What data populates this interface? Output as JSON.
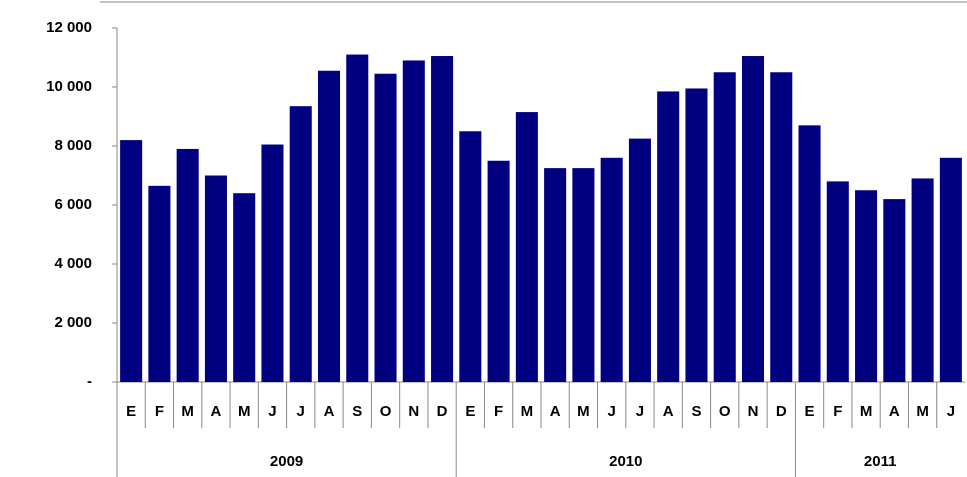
{
  "chart_data": {
    "type": "bar",
    "color": "#000080",
    "ylim": [
      0,
      12000
    ],
    "yticks": [
      {
        "value": 0,
        "label": "-"
      },
      {
        "value": 2000,
        "label": "2 000"
      },
      {
        "value": 4000,
        "label": "4 000"
      },
      {
        "value": 6000,
        "label": "6 000"
      },
      {
        "value": 8000,
        "label": "8 000"
      },
      {
        "value": 10000,
        "label": "10 000"
      },
      {
        "value": 12000,
        "label": "12 000"
      }
    ],
    "grid": false,
    "groups": [
      {
        "label": "2009",
        "categories": [
          "E",
          "F",
          "M",
          "A",
          "M",
          "J",
          "J",
          "A",
          "S",
          "O",
          "N",
          "D"
        ],
        "values": [
          8200,
          6650,
          7900,
          7000,
          6400,
          8050,
          9350,
          10550,
          11100,
          10450,
          10900,
          11050
        ]
      },
      {
        "label": "2010",
        "categories": [
          "E",
          "F",
          "M",
          "A",
          "M",
          "J",
          "J",
          "A",
          "S",
          "O",
          "N",
          "D"
        ],
        "values": [
          8500,
          7500,
          9150,
          7250,
          7250,
          7600,
          8250,
          9850,
          9950,
          10500,
          11050,
          10500
        ]
      },
      {
        "label": "2011",
        "categories": [
          "E",
          "F",
          "M",
          "A",
          "M",
          "J"
        ],
        "values": [
          8700,
          6800,
          6500,
          6200,
          6900,
          7600
        ]
      }
    ]
  }
}
